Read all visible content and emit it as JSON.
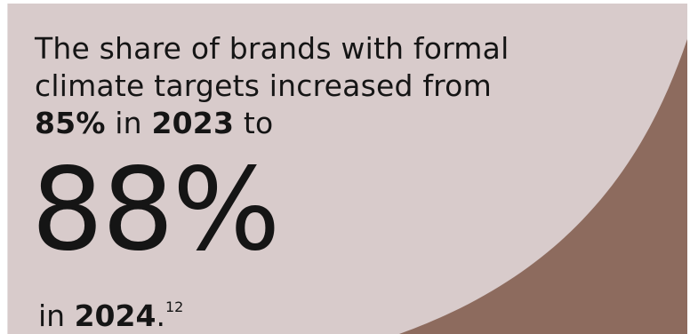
{
  "colors": {
    "background": "#d8cbcb",
    "accent_arc": "#8d6b5e",
    "text": "#151515"
  },
  "headline": {
    "line1": "The share of brands with formal",
    "line2": "climate targets increased from",
    "prev_value": "85%",
    "in_word": "in",
    "prev_year": "2023",
    "to_word": "to"
  },
  "stat": {
    "value": "88%"
  },
  "footer": {
    "in_word": "in",
    "year": "2024",
    "period": ".",
    "footnote": "12"
  }
}
